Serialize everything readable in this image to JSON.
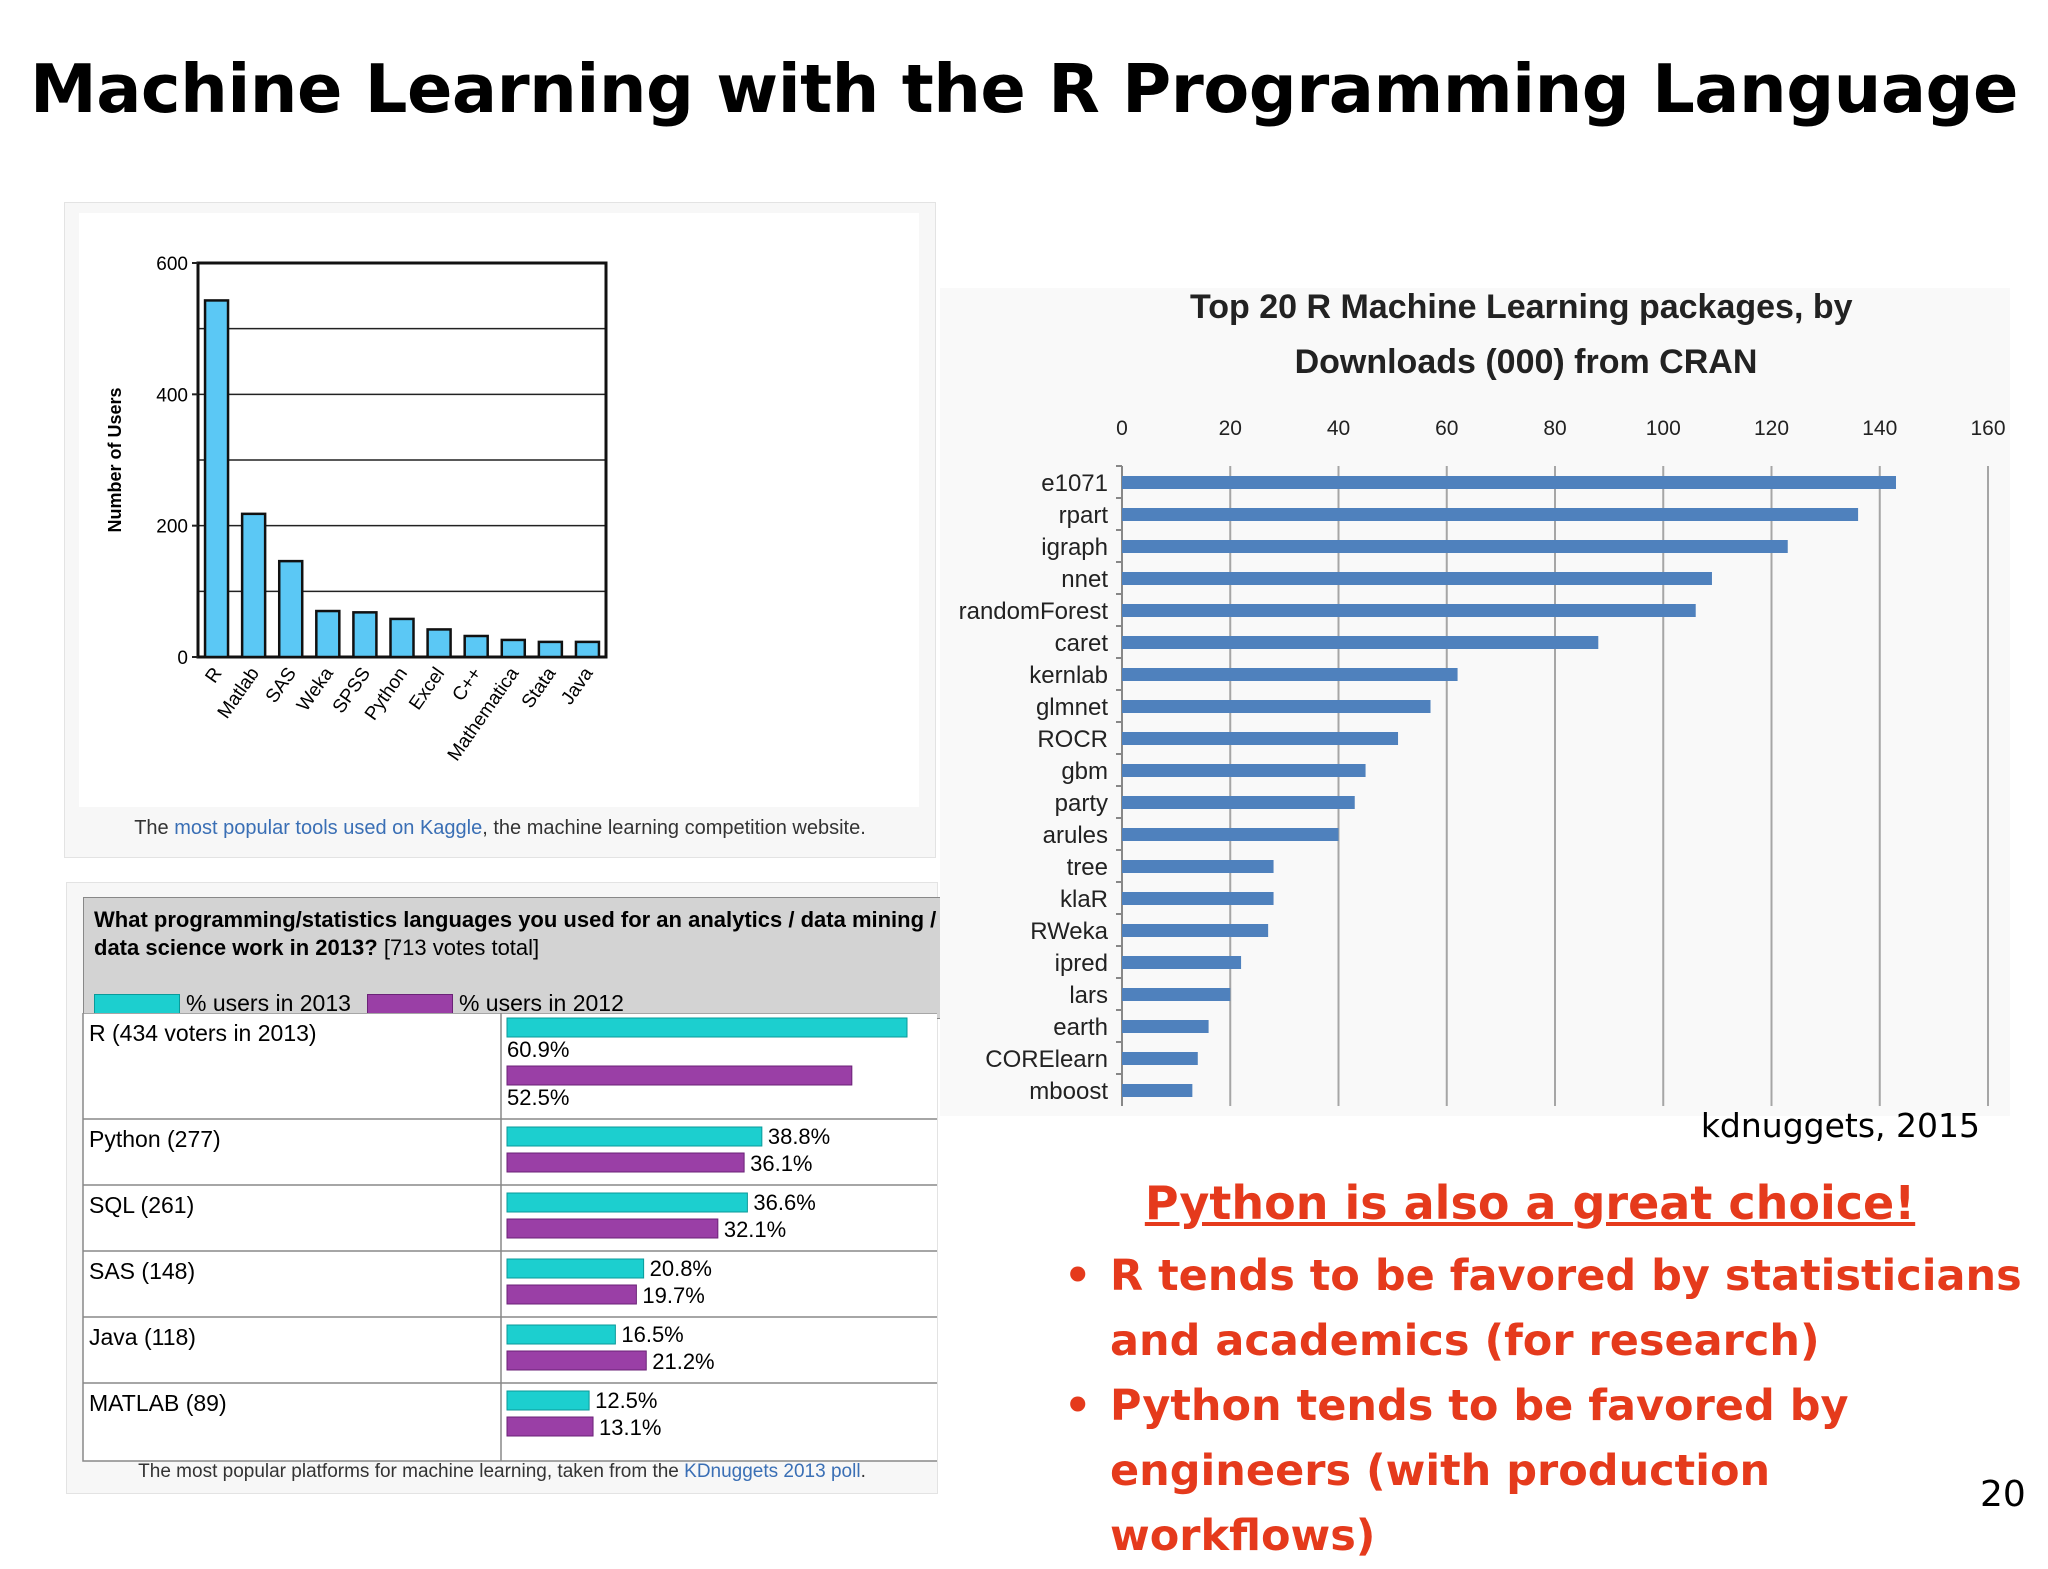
{
  "slide": {
    "title": "Machine Learning with the R Programming Language",
    "credit": "kdnuggets, 2015",
    "python_heading": "Python is also a great choice!",
    "bullets": [
      "R tends to be favored by statisticians and academics (for research)",
      "Python tends to be favored by engineers (with production workflows)"
    ],
    "slide_number": "20"
  },
  "kaggle": {
    "caption_pre": "The ",
    "caption_link": "most popular tools used on Kaggle",
    "caption_post": ", the machine learning competition website."
  },
  "poll": {
    "question": "What programming/statistics languages you used for an analytics / data mining / data science work in 2013?",
    "votes": "[713 votes total]",
    "legend_2013": "% users in 2013",
    "legend_2012": "% users in 2012",
    "caption_pre": "The most popular platforms for machine learning, taken from the ",
    "caption_link": "KDnuggets 2013 poll",
    "caption_post": "."
  },
  "chart_data": [
    {
      "type": "bar",
      "ylabel": "Number of Users",
      "categories": [
        "R",
        "Matlab",
        "SAS",
        "Weka",
        "SPSS",
        "Python",
        "Excel",
        "C++",
        "Mathematica",
        "Stata",
        "Java"
      ],
      "values": [
        543,
        218,
        146,
        70,
        68,
        58,
        42,
        32,
        26,
        23,
        23
      ],
      "ylim": [
        0,
        600
      ],
      "yticks": [
        0,
        200,
        400,
        600
      ],
      "color": "#5bc8f5"
    },
    {
      "type": "bar",
      "title": "Top 20 R Machine Learning packages, by Downloads (000) from CRAN",
      "categories": [
        "e1071",
        "rpart",
        "igraph",
        "nnet",
        "randomForest",
        "caret",
        "kernlab",
        "glmnet",
        "ROCR",
        "gbm",
        "party",
        "arules",
        "tree",
        "klaR",
        "RWeka",
        "ipred",
        "lars",
        "earth",
        "CORElearn",
        "mboost"
      ],
      "values": [
        143,
        136,
        123,
        109,
        106,
        88,
        62,
        57,
        51,
        45,
        43,
        40,
        28,
        28,
        27,
        22,
        20,
        16,
        14,
        13
      ],
      "xlim": [
        0,
        160
      ],
      "xticks": [
        0,
        20,
        40,
        60,
        80,
        100,
        120,
        140,
        160
      ],
      "color": "#4f81bd"
    },
    {
      "type": "bar",
      "categories": [
        "R (434 voters in 2013)",
        "Python (277)",
        "SQL (261)",
        "SAS (148)",
        "Java (118)",
        "MATLAB (89)"
      ],
      "series": [
        {
          "name": "% users in 2013",
          "values": [
            60.9,
            38.8,
            36.6,
            20.8,
            16.5,
            12.5
          ],
          "labels": [
            "60.9%",
            "38.8%",
            "36.6%",
            "20.8%",
            "16.5%",
            "12.5%"
          ],
          "color": "#1ccfcf"
        },
        {
          "name": "% users in 2012",
          "values": [
            52.5,
            36.1,
            32.1,
            19.7,
            21.2,
            13.1
          ],
          "labels": [
            "52.5%",
            "36.1%",
            "32.1%",
            "19.7%",
            "21.2%",
            "13.1%"
          ],
          "color": "#9a3fa6"
        }
      ]
    }
  ]
}
